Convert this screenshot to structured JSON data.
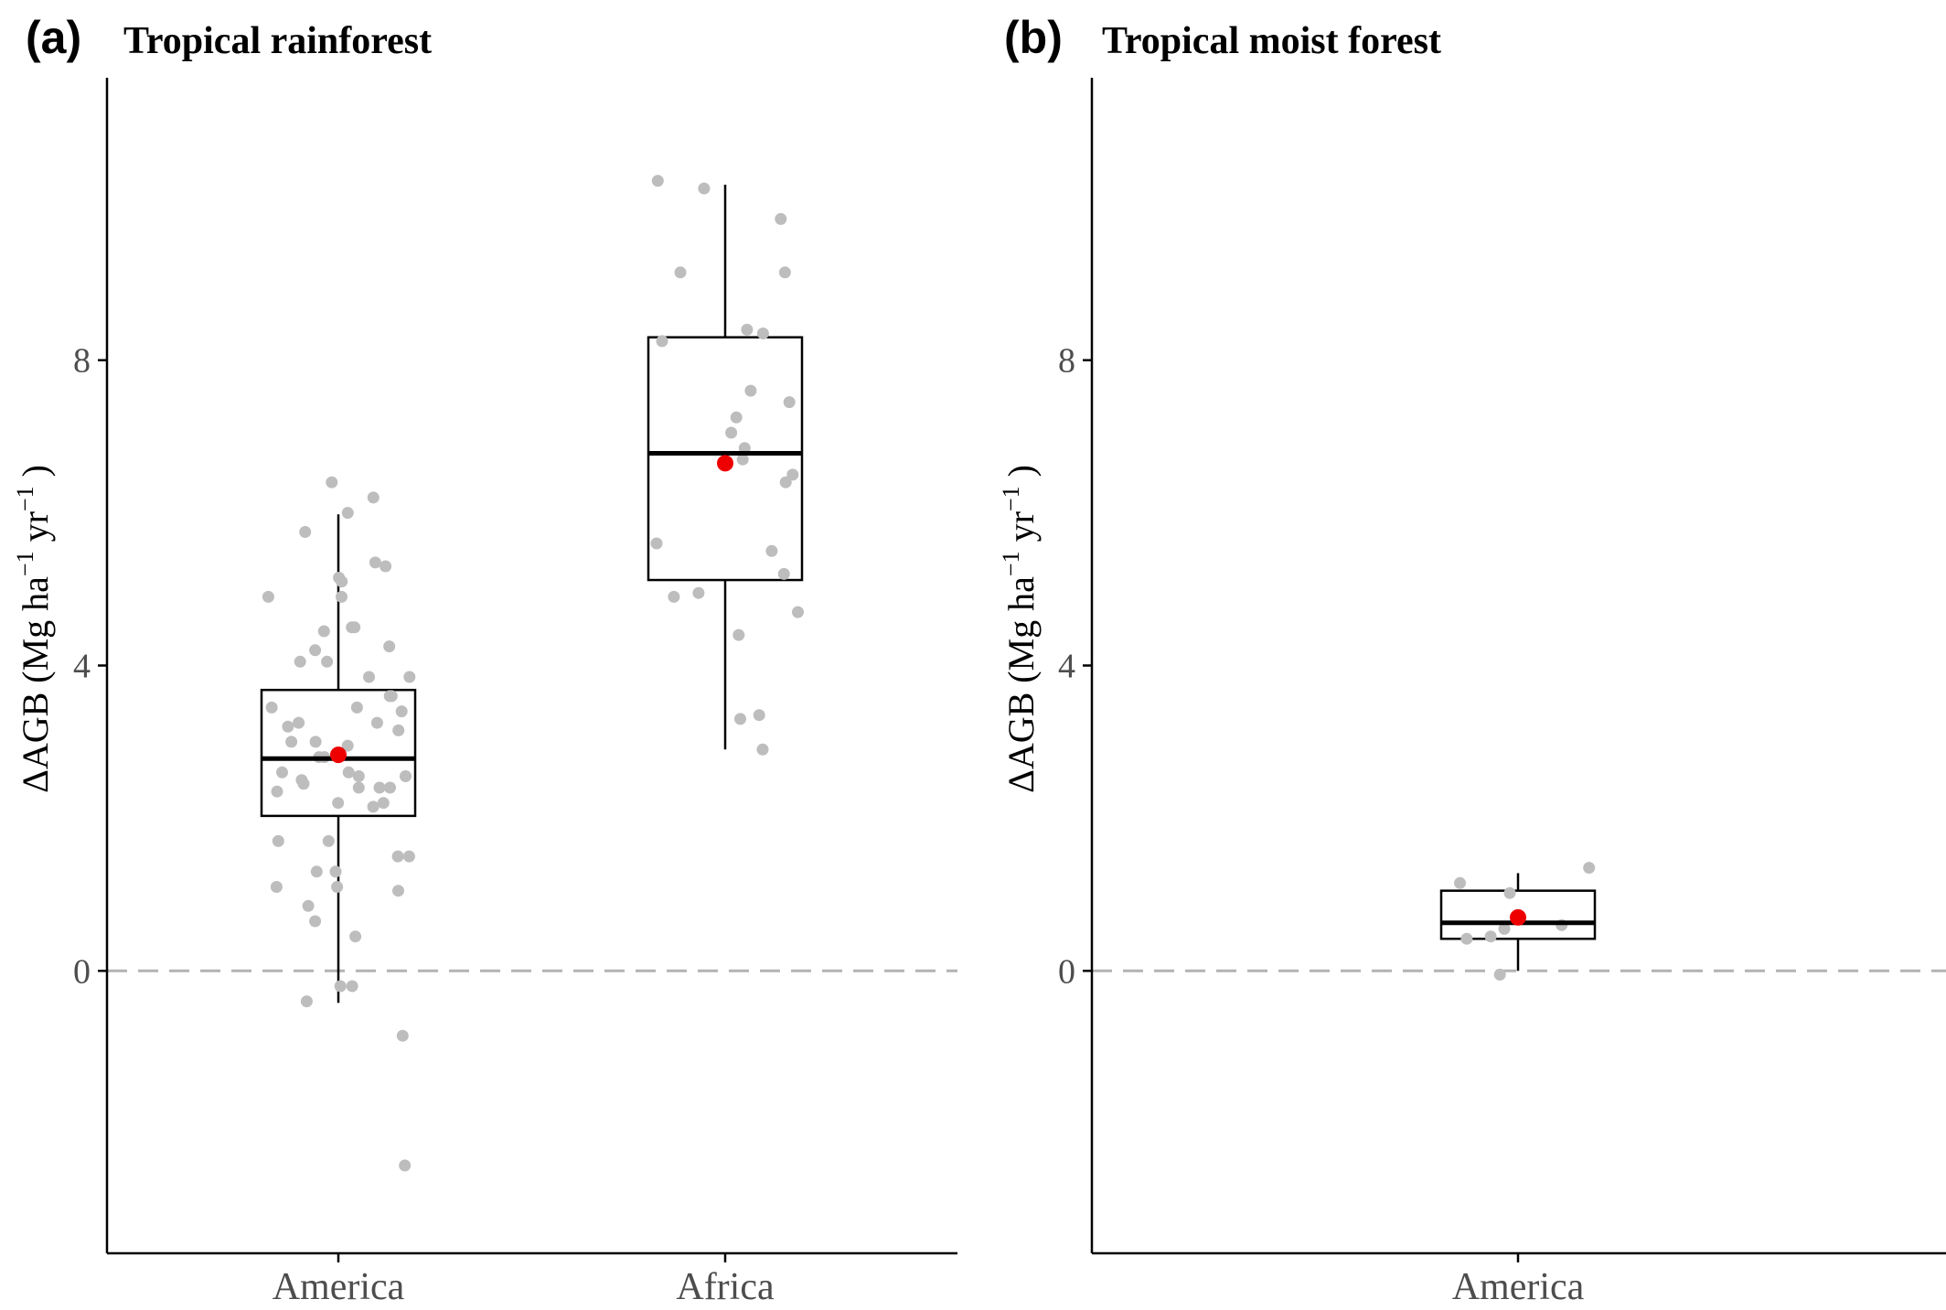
{
  "colors": {
    "points": "#bdbdbd",
    "mean": "#ee0000",
    "box": "#000000",
    "zero_line": "#b3b3b3",
    "axis": "#000000"
  },
  "chart_data": [
    {
      "type": "box",
      "tag": "(a)",
      "title": "Tropical rainforest",
      "ylabel": "ΔAGB (Mg ha⁻¹ yr⁻¹)",
      "ylabel_parts": {
        "main": "ΔAGB (Mg  ha",
        "sup1": "−1",
        "mid": " yr",
        "sup2": "−1",
        "end": " )"
      },
      "ylim": [
        -3.7,
        11.7
      ],
      "yticks": [
        0,
        4,
        8
      ],
      "zero_line": true,
      "categories": [
        "America",
        "Africa"
      ],
      "boxes": [
        {
          "category": "America",
          "whisker_low": -0.42,
          "q1": 2.03,
          "median": 2.78,
          "q3": 3.68,
          "whisker_high": 5.98,
          "mean": 2.83,
          "points": [
            6.2,
            6.0,
            6.4,
            5.75,
            5.3,
            5.35,
            5.15,
            5.1,
            4.9,
            4.9,
            4.5,
            4.5,
            4.45,
            4.25,
            4.2,
            4.05,
            4.05,
            3.85,
            3.85,
            3.6,
            3.6,
            3.45,
            3.45,
            3.4,
            3.25,
            3.25,
            3.2,
            3.15,
            3.0,
            3.0,
            2.95,
            2.8,
            2.8,
            2.6,
            2.6,
            2.55,
            2.55,
            2.5,
            2.45,
            2.4,
            2.4,
            2.4,
            2.35,
            2.2,
            2.2,
            2.15,
            1.7,
            1.7,
            1.5,
            1.5,
            1.3,
            1.3,
            1.1,
            1.1,
            1.05,
            0.85,
            0.65,
            0.45,
            -0.2,
            -0.2,
            -0.4,
            -0.85,
            -2.55
          ]
        },
        {
          "category": "Africa",
          "whisker_low": 2.9,
          "q1": 5.12,
          "median": 6.78,
          "q3": 8.3,
          "whisker_high": 10.3,
          "mean": 6.65,
          "points": [
            10.35,
            10.25,
            9.85,
            9.15,
            9.15,
            8.4,
            8.35,
            8.25,
            7.6,
            7.45,
            7.25,
            7.05,
            6.85,
            6.7,
            6.5,
            6.4,
            5.6,
            5.5,
            5.2,
            4.95,
            4.9,
            4.7,
            4.4,
            3.35,
            3.3,
            2.9
          ]
        }
      ]
    },
    {
      "type": "box",
      "tag": "(b)",
      "title": "Tropical moist forest",
      "ylabel": "ΔAGB (Mg ha⁻¹ yr⁻¹)",
      "ylabel_parts": {
        "main": "ΔAGB (Mg  ha",
        "sup1": "−1",
        "mid": " yr",
        "sup2": "−1",
        "end": " )"
      },
      "ylim": [
        -3.7,
        11.7
      ],
      "yticks": [
        0,
        4,
        8
      ],
      "zero_line": true,
      "categories": [
        "America"
      ],
      "boxes": [
        {
          "category": "America",
          "whisker_low": 0.0,
          "q1": 0.42,
          "median": 0.63,
          "q3": 1.05,
          "whisker_high": 1.28,
          "mean": 0.7,
          "points": [
            1.35,
            1.15,
            1.02,
            0.6,
            0.55,
            0.45,
            0.42,
            -0.05
          ]
        }
      ]
    }
  ]
}
